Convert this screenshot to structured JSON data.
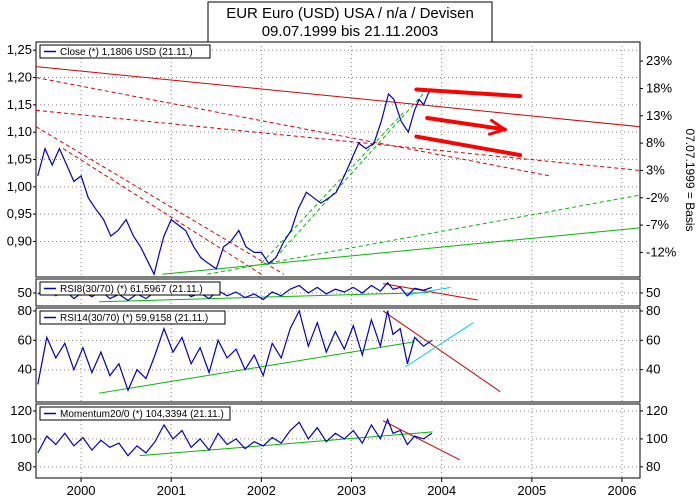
{
  "title": "EUR Euro (USD) USA / n/a / Devisen",
  "subtitle": "09.07.1999 bis 21.11.2003",
  "colors": {
    "price": "#0000cc",
    "trend_red": "#dd0000",
    "trend_green": "#00bb00",
    "trend_cyan": "#00ccee",
    "arrow": "#ff0000",
    "grid": "#888888",
    "frame": "#000000"
  },
  "right_axis_caption": "07.07.1999 = Basis",
  "chart_data": [
    {
      "panel": "price",
      "type": "line",
      "legend": "Close (*) 1,1806 USD (21.11.)",
      "x_ticks": [
        "2000",
        "2001",
        "2002",
        "2003",
        "2004",
        "2005",
        "2006"
      ],
      "x_tick_years": [
        2000,
        2001,
        2002,
        2003,
        2004,
        2005,
        2006
      ],
      "y_ticks": [
        "1,25",
        "1,20",
        "1,15",
        "1,10",
        "1,05",
        "1,00",
        "0,95",
        "0,90"
      ],
      "y_tick_values": [
        1.25,
        1.2,
        1.15,
        1.1,
        1.05,
        1.0,
        0.95,
        0.9
      ],
      "right_ticks": [
        "23%",
        "18%",
        "13%",
        "8%",
        "3%",
        "-2%",
        "-7%",
        "-12%"
      ],
      "right_tick_values": [
        1.23,
        1.18,
        1.13,
        1.08,
        1.03,
        0.98,
        0.93,
        0.88
      ],
      "xlim": [
        1999.5,
        2006.2
      ],
      "ylim": [
        0.835,
        1.265
      ],
      "series": [
        {
          "x": [
            1999.52,
            1999.6,
            1999.68,
            1999.76,
            1999.84,
            1999.92,
            2000.0,
            2000.08,
            2000.16,
            2000.25,
            2000.33,
            2000.41,
            2000.5,
            2000.58,
            2000.66,
            2000.75,
            2000.81,
            2000.87,
            2000.92,
            2001.0,
            2001.08,
            2001.16,
            2001.25,
            2001.33,
            2001.41,
            2001.5,
            2001.58,
            2001.66,
            2001.75,
            2001.83,
            2001.92,
            2002.0,
            2002.08,
            2002.16,
            2002.25,
            2002.33,
            2002.41,
            2002.5,
            2002.58,
            2002.66,
            2002.75,
            2002.83,
            2002.92,
            2003.0,
            2003.08,
            2003.16,
            2003.25,
            2003.33,
            2003.41,
            2003.47,
            2003.55,
            2003.63,
            2003.7,
            2003.75,
            2003.8,
            2003.85,
            2003.89
          ],
          "y": [
            1.02,
            1.07,
            1.04,
            1.07,
            1.04,
            1.01,
            1.02,
            0.98,
            0.96,
            0.94,
            0.91,
            0.92,
            0.94,
            0.91,
            0.89,
            0.86,
            0.84,
            0.88,
            0.91,
            0.94,
            0.93,
            0.92,
            0.89,
            0.87,
            0.86,
            0.85,
            0.89,
            0.9,
            0.92,
            0.89,
            0.88,
            0.88,
            0.86,
            0.87,
            0.9,
            0.92,
            0.96,
            0.99,
            0.98,
            0.97,
            0.98,
            0.99,
            1.02,
            1.05,
            1.08,
            1.07,
            1.08,
            1.12,
            1.17,
            1.16,
            1.12,
            1.1,
            1.14,
            1.16,
            1.15,
            1.17,
            1.18
          ],
          "color": "#0000cc"
        }
      ],
      "trend_lines": [
        {
          "color": "#dd0000",
          "dash": false,
          "points": [
            [
              1999.5,
              1.22
            ],
            [
              2006.2,
              1.11
            ]
          ]
        },
        {
          "color": "#dd0000",
          "dash": true,
          "points": [
            [
              1999.5,
              1.2
            ],
            [
              2005.2,
              1.02
            ]
          ]
        },
        {
          "color": "#dd0000",
          "dash": true,
          "points": [
            [
              1999.5,
              1.14
            ],
            [
              2006.2,
              1.03
            ]
          ]
        },
        {
          "color": "#dd0000",
          "dash": true,
          "points": [
            [
              1999.5,
              1.11
            ],
            [
              2002.25,
              0.84
            ]
          ]
        },
        {
          "color": "#dd0000",
          "dash": true,
          "points": [
            [
              1999.8,
              1.07
            ],
            [
              2002.0,
              0.84
            ]
          ]
        },
        {
          "color": "#00bb00",
          "dash": false,
          "points": [
            [
              2000.9,
              0.84
            ],
            [
              2006.2,
              0.925
            ]
          ]
        },
        {
          "color": "#00bb00",
          "dash": true,
          "points": [
            [
              2001.4,
              0.84
            ],
            [
              2006.2,
              0.985
            ]
          ]
        },
        {
          "color": "#00bb00",
          "dash": true,
          "points": [
            [
              2002.0,
              0.86
            ],
            [
              2003.6,
              1.14
            ]
          ]
        },
        {
          "color": "#00bb00",
          "dash": true,
          "points": [
            [
              2002.1,
              0.86
            ],
            [
              2003.85,
              1.18
            ]
          ]
        }
      ],
      "arrows": [
        {
          "points": [
            [
              2003.72,
              1.178
            ],
            [
              2004.87,
              1.166
            ]
          ],
          "head": false
        },
        {
          "points": [
            [
              2003.72,
              1.092
            ],
            [
              2004.87,
              1.058
            ]
          ],
          "head": false
        },
        {
          "points": [
            [
              2003.84,
              1.126
            ],
            [
              2004.7,
              1.105
            ]
          ],
          "head": true
        }
      ]
    },
    {
      "panel": "rsi8",
      "type": "line",
      "legend": "RSI8(30/70) (*) 61,5967 (21.11.)",
      "y_ticks": [
        "50"
      ],
      "y_tick_values": [
        50
      ],
      "right_ticks": [
        "50"
      ],
      "right_tick_values": [
        50
      ],
      "ylim": [
        22,
        80
      ],
      "series": [
        {
          "x": [
            1999.52,
            1999.62,
            1999.72,
            1999.82,
            1999.92,
            2000.02,
            2000.12,
            2000.22,
            2000.32,
            2000.42,
            2000.52,
            2000.62,
            2000.72,
            2000.82,
            2000.92,
            2001.02,
            2001.12,
            2001.22,
            2001.32,
            2001.42,
            2001.52,
            2001.62,
            2001.72,
            2001.82,
            2001.92,
            2002.02,
            2002.12,
            2002.22,
            2002.32,
            2002.42,
            2002.52,
            2002.62,
            2002.72,
            2002.82,
            2002.92,
            2003.02,
            2003.12,
            2003.22,
            2003.32,
            2003.4,
            2003.46,
            2003.54,
            2003.62,
            2003.7,
            2003.8,
            2003.89
          ],
          "y": [
            48,
            58,
            44,
            56,
            38,
            52,
            42,
            54,
            38,
            47,
            34,
            48,
            38,
            52,
            62,
            48,
            58,
            42,
            50,
            38,
            55,
            44,
            52,
            40,
            48,
            36,
            52,
            44,
            58,
            66,
            50,
            62,
            48,
            58,
            52,
            62,
            50,
            66,
            54,
            72,
            58,
            62,
            44,
            60,
            56,
            62
          ],
          "color": "#0000cc"
        }
      ],
      "trend_lines": [
        {
          "color": "#00bb00",
          "dash": false,
          "points": [
            [
              2000.2,
              31
            ],
            [
              2003.85,
              51
            ]
          ]
        },
        {
          "color": "#dd0000",
          "dash": false,
          "points": [
            [
              2003.35,
              70
            ],
            [
              2004.4,
              35
            ]
          ]
        },
        {
          "color": "#00ccee",
          "dash": false,
          "points": [
            [
              2003.6,
              45
            ],
            [
              2004.1,
              62
            ]
          ]
        }
      ]
    },
    {
      "panel": "rsi14",
      "type": "line",
      "legend": "RSI14(30/70) (*) 59,9158 (21.11.)",
      "y_ticks": [
        "80",
        "60",
        "40"
      ],
      "y_tick_values": [
        80,
        60,
        40
      ],
      "right_ticks": [
        "80",
        "60",
        "40"
      ],
      "right_tick_values": [
        80,
        60,
        40
      ],
      "ylim": [
        18,
        82
      ],
      "series": [
        {
          "x": [
            1999.52,
            1999.62,
            1999.72,
            1999.82,
            1999.92,
            2000.02,
            2000.12,
            2000.22,
            2000.32,
            2000.42,
            2000.52,
            2000.62,
            2000.72,
            2000.82,
            2000.92,
            2001.02,
            2001.12,
            2001.22,
            2001.32,
            2001.42,
            2001.52,
            2001.62,
            2001.72,
            2001.82,
            2001.92,
            2002.02,
            2002.12,
            2002.22,
            2002.32,
            2002.42,
            2002.52,
            2002.62,
            2002.72,
            2002.82,
            2002.92,
            2003.02,
            2003.12,
            2003.22,
            2003.32,
            2003.4,
            2003.46,
            2003.54,
            2003.62,
            2003.7,
            2003.8,
            2003.89
          ],
          "y": [
            30,
            62,
            48,
            58,
            40,
            55,
            38,
            52,
            36,
            44,
            26,
            40,
            34,
            50,
            68,
            52,
            62,
            44,
            55,
            38,
            60,
            48,
            54,
            40,
            50,
            36,
            58,
            48,
            68,
            80,
            56,
            72,
            52,
            66,
            54,
            70,
            50,
            74,
            56,
            80,
            64,
            68,
            44,
            62,
            56,
            60
          ],
          "color": "#0000cc"
        }
      ],
      "trend_lines": [
        {
          "color": "#00bb00",
          "dash": false,
          "points": [
            [
              2000.2,
              24
            ],
            [
              2003.7,
              59
            ]
          ]
        },
        {
          "color": "#dd0000",
          "dash": false,
          "points": [
            [
              2003.35,
              80
            ],
            [
              2004.65,
              25
            ]
          ]
        },
        {
          "color": "#00ccee",
          "dash": false,
          "points": [
            [
              2003.6,
              42
            ],
            [
              2004.35,
              72
            ]
          ]
        }
      ]
    },
    {
      "panel": "momentum",
      "type": "line",
      "legend": "Momentum20/0 (*) 104,3394 (21.11.)",
      "y_ticks": [
        "120",
        "100",
        "80"
      ],
      "y_tick_values": [
        120,
        100,
        80
      ],
      "right_ticks": [
        "120",
        "100",
        "80"
      ],
      "right_tick_values": [
        120,
        100,
        80
      ],
      "ylim": [
        72,
        125
      ],
      "series": [
        {
          "x": [
            1999.52,
            1999.62,
            1999.72,
            1999.82,
            1999.92,
            2000.02,
            2000.12,
            2000.22,
            2000.32,
            2000.42,
            2000.52,
            2000.62,
            2000.72,
            2000.82,
            2000.92,
            2001.02,
            2001.12,
            2001.22,
            2001.32,
            2001.42,
            2001.52,
            2001.62,
            2001.72,
            2001.82,
            2001.92,
            2002.02,
            2002.12,
            2002.22,
            2002.32,
            2002.42,
            2002.52,
            2002.62,
            2002.72,
            2002.82,
            2002.92,
            2003.02,
            2003.12,
            2003.22,
            2003.32,
            2003.4,
            2003.46,
            2003.54,
            2003.62,
            2003.7,
            2003.8,
            2003.89
          ],
          "y": [
            90,
            102,
            96,
            104,
            95,
            101,
            92,
            99,
            94,
            97,
            88,
            95,
            90,
            98,
            110,
            100,
            106,
            94,
            100,
            92,
            104,
            96,
            100,
            93,
            98,
            95,
            101,
            97,
            106,
            112,
            100,
            108,
            98,
            104,
            100,
            106,
            97,
            110,
            100,
            114,
            104,
            106,
            96,
            102,
            100,
            104
          ],
          "color": "#0000cc"
        }
      ],
      "trend_lines": [
        {
          "color": "#00bb00",
          "dash": false,
          "points": [
            [
              2000.65,
              88
            ],
            [
              2003.9,
              105
            ]
          ]
        },
        {
          "color": "#dd0000",
          "dash": false,
          "points": [
            [
              2003.35,
              113
            ],
            [
              2004.2,
              85
            ]
          ]
        }
      ]
    }
  ]
}
